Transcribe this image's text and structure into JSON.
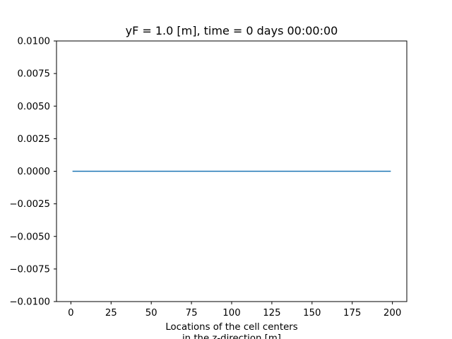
{
  "chart_data": {
    "type": "line",
    "title": "yF = 1.0 [m], time = 0 days 00:00:00",
    "xlabel_lines": [
      "Locations of the cell centers",
      "in the z-direction  [m]"
    ],
    "ylabel": "",
    "xlim": [
      -8.95,
      208.95
    ],
    "ylim": [
      -0.01,
      0.01
    ],
    "x_ticks": [
      0,
      25,
      50,
      75,
      100,
      125,
      150,
      175,
      200
    ],
    "y_ticks": [
      -0.01,
      -0.0075,
      -0.005,
      -0.0025,
      0.0,
      0.0025,
      0.005,
      0.0075,
      0.01
    ],
    "x_tick_labels": [
      "0",
      "25",
      "50",
      "75",
      "100",
      "125",
      "150",
      "175",
      "200"
    ],
    "y_tick_labels": [
      "−0.0100",
      "−0.0075",
      "−0.0050",
      "−0.0025",
      "0.0000",
      "0.0025",
      "0.0050",
      "0.0075",
      "0.0100"
    ],
    "grid": false,
    "series": [
      {
        "color": "#1f77b4",
        "x": [
          1,
          199
        ],
        "y": [
          0.0,
          0.0
        ]
      }
    ]
  }
}
